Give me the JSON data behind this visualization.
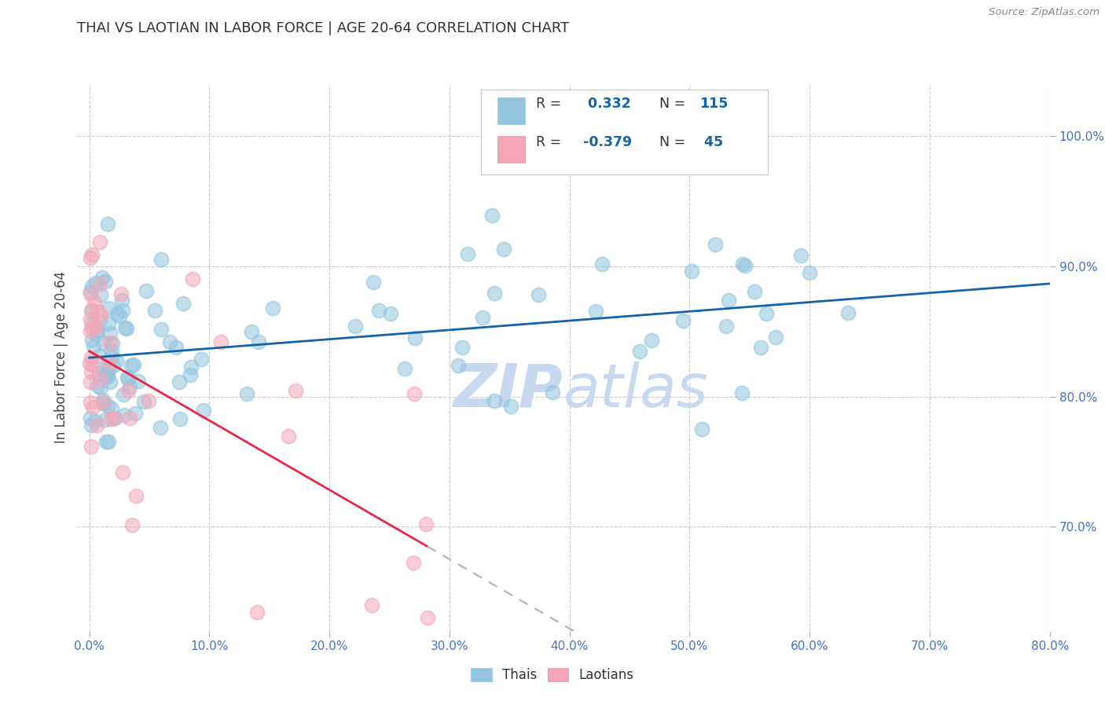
{
  "title": "THAI VS LAOTIAN IN LABOR FORCE | AGE 20-64 CORRELATION CHART",
  "source": "Source: ZipAtlas.com",
  "ylabel": "In Labor Force | Age 20-64",
  "x_tick_labels": [
    "0.0%",
    "10.0%",
    "20.0%",
    "30.0%",
    "40.0%",
    "50.0%",
    "60.0%",
    "70.0%",
    "80.0%"
  ],
  "x_tick_vals": [
    0,
    10,
    20,
    30,
    40,
    50,
    60,
    70,
    80
  ],
  "y_tick_labels": [
    "70.0%",
    "80.0%",
    "90.0%",
    "100.0%"
  ],
  "y_tick_vals": [
    70,
    80,
    90,
    100
  ],
  "xlim": [
    -1,
    80
  ],
  "ylim": [
    62,
    104
  ],
  "thai_color": "#92C5DE",
  "laotian_color": "#F4A6B8",
  "trend_thai_color": "#1464AA",
  "trend_laotian_color": "#E8274B",
  "trend_laotian_dash_color": "#BBBBBB",
  "background_color": "#FFFFFF",
  "grid_color": "#CCCCCC",
  "title_color": "#333333",
  "axis_label_color": "#444444",
  "tick_color": "#4472C4",
  "source_color": "#888888",
  "watermark_color": "#C8D8EE",
  "dot_size": 120,
  "dot_alpha": 0.55,
  "trend_linewidth": 2.0,
  "thai_r": 0.332,
  "thai_n": 115,
  "laotian_r": -0.379,
  "laotian_n": 45
}
